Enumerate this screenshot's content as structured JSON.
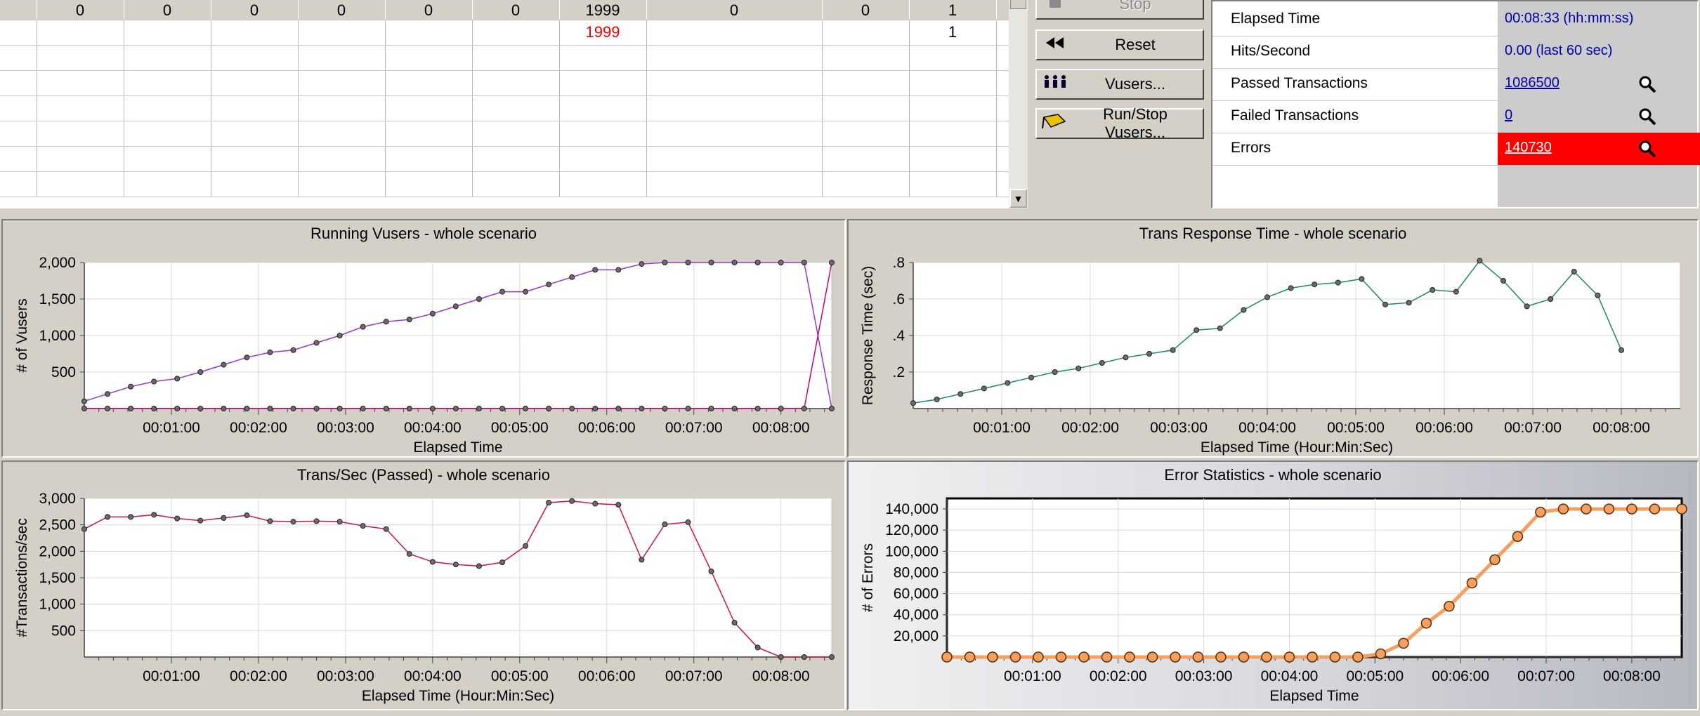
{
  "grid": {
    "rows": [
      [
        "",
        "0",
        "0",
        "0",
        "0",
        "0",
        "0",
        "1999",
        "0",
        "0",
        "1",
        ""
      ],
      [
        "",
        "",
        "",
        "",
        "",
        "",
        "",
        "1999",
        "",
        "",
        "1",
        ""
      ],
      [
        "",
        "",
        "",
        "",
        "",
        "",
        "",
        "",
        "",
        "",
        "",
        ""
      ],
      [
        "",
        "",
        "",
        "",
        "",
        "",
        "",
        "",
        "",
        "",
        "",
        ""
      ],
      [
        "",
        "",
        "",
        "",
        "",
        "",
        "",
        "",
        "",
        "",
        "",
        ""
      ],
      [
        "",
        "",
        "",
        "",
        "",
        "",
        "",
        "",
        "",
        "",
        "",
        ""
      ],
      [
        "",
        "",
        "",
        "",
        "",
        "",
        "",
        "",
        "",
        "",
        "",
        ""
      ],
      [
        "",
        "",
        "",
        "",
        "",
        "",
        "",
        "",
        "",
        "",
        "",
        ""
      ]
    ]
  },
  "controls": {
    "stop": "Stop",
    "reset": "Reset",
    "vusers": "Vusers...",
    "run_stop_vusers": "Run/Stop Vusers..."
  },
  "stats": [
    {
      "label": "Elapsed Time",
      "value": "00:08:33 (hh:mm:ss)",
      "link": false
    },
    {
      "label": "Hits/Second",
      "value": "0.00 (last 60 sec)",
      "link": false
    },
    {
      "label": "Passed Transactions",
      "value": "1086500",
      "link": true
    },
    {
      "label": "Failed Transactions",
      "value": "0",
      "link": true
    },
    {
      "label": "Errors",
      "value": "140730",
      "link": true,
      "error": true
    }
  ],
  "colors": {
    "vusers_running": "#9933cc",
    "vusers_done": "#cc0066",
    "response_time": "#1f8a5a",
    "trans_per_sec": "#cc1144",
    "errors": "#f4a060",
    "error_highlight": "#ff0000"
  },
  "chart_data": [
    {
      "type": "line",
      "title": "Running Vusers - whole scenario",
      "xlabel": "Elapsed Time",
      "ylabel": "# of Vusers",
      "xlim": [
        0,
        515
      ],
      "ylim": [
        0,
        2000
      ],
      "yticks": [
        500,
        1000,
        1500,
        2000
      ],
      "ytick_labels": [
        "500",
        "1,000",
        "1,500",
        "2,000"
      ],
      "xticks": [
        60,
        120,
        180,
        240,
        300,
        360,
        420,
        480
      ],
      "xtick_labels": [
        "00:01:00",
        "00:02:00",
        "00:03:00",
        "00:04:00",
        "00:05:00",
        "00:06:00",
        "00:07:00",
        "00:08:00"
      ],
      "x": [
        0,
        16,
        32,
        48,
        64,
        80,
        96,
        112,
        128,
        144,
        160,
        176,
        192,
        208,
        224,
        240,
        256,
        272,
        288,
        304,
        320,
        336,
        352,
        368,
        384,
        400,
        416,
        432,
        448,
        464,
        480,
        496,
        515
      ],
      "series": [
        {
          "values": [
            100,
            200,
            300,
            370,
            410,
            500,
            600,
            700,
            770,
            800,
            900,
            1000,
            1120,
            1190,
            1220,
            1300,
            1400,
            1500,
            1600,
            1600,
            1700,
            1800,
            1900,
            1900,
            1980,
            2000,
            2000,
            2000,
            2000,
            2000,
            2000,
            2000,
            0
          ]
        },
        {
          "values": [
            0,
            0,
            0,
            0,
            0,
            0,
            0,
            0,
            0,
            0,
            0,
            0,
            0,
            0,
            0,
            0,
            0,
            0,
            0,
            0,
            0,
            0,
            0,
            0,
            0,
            0,
            0,
            0,
            0,
            0,
            0,
            0,
            1999
          ]
        }
      ]
    },
    {
      "type": "line",
      "title": "Trans Response Time - whole scenario",
      "xlabel": "Elapsed Time (Hour:Min:Sec)",
      "ylabel": "Response Time (sec)",
      "xlim": [
        0,
        520
      ],
      "ylim": [
        0,
        0.8
      ],
      "yticks": [
        0.2,
        0.4,
        0.6,
        0.8
      ],
      "ytick_labels": [
        ".2",
        ".4",
        ".6",
        ".8"
      ],
      "xticks": [
        60,
        120,
        180,
        240,
        300,
        360,
        420,
        480
      ],
      "xtick_labels": [
        "00:01:00",
        "00:02:00",
        "00:03:00",
        "00:04:00",
        "00:05:00",
        "00:06:00",
        "00:07:00",
        "00:08:00"
      ],
      "x": [
        0,
        16,
        32,
        48,
        64,
        80,
        96,
        112,
        128,
        144,
        160,
        176,
        192,
        208,
        224,
        240,
        256,
        272,
        288,
        304,
        320,
        336,
        352,
        368,
        384,
        400,
        416,
        432,
        448,
        464,
        480
      ],
      "series": [
        {
          "values": [
            0.03,
            0.05,
            0.08,
            0.11,
            0.14,
            0.17,
            0.2,
            0.22,
            0.25,
            0.28,
            0.3,
            0.32,
            0.43,
            0.44,
            0.54,
            0.61,
            0.66,
            0.68,
            0.69,
            0.71,
            0.57,
            0.58,
            0.65,
            0.64,
            0.81,
            0.7,
            0.56,
            0.6,
            0.75,
            0.62,
            0.32
          ]
        }
      ]
    },
    {
      "type": "line",
      "title": "Trans/Sec (Passed) - whole scenario",
      "xlabel": "Elapsed Time (Hour:Min:Sec)",
      "ylabel": "#Transactions/sec",
      "xlim": [
        0,
        515
      ],
      "ylim": [
        0,
        3000
      ],
      "yticks": [
        500,
        1000,
        1500,
        2000,
        2500,
        3000
      ],
      "ytick_labels": [
        "500",
        "1,000",
        "1,500",
        "2,000",
        "2,500",
        "3,000"
      ],
      "xticks": [
        60,
        120,
        180,
        240,
        300,
        360,
        420,
        480
      ],
      "xtick_labels": [
        "00:01:00",
        "00:02:00",
        "00:03:00",
        "00:04:00",
        "00:05:00",
        "00:06:00",
        "00:07:00",
        "00:08:00"
      ],
      "x": [
        0,
        16,
        32,
        48,
        64,
        80,
        96,
        112,
        128,
        144,
        160,
        176,
        192,
        208,
        224,
        240,
        256,
        272,
        288,
        304,
        320,
        336,
        352,
        368,
        384,
        400,
        416,
        432,
        448,
        464,
        480,
        496,
        515
      ],
      "series": [
        {
          "values": [
            2420,
            2650,
            2650,
            2690,
            2620,
            2580,
            2630,
            2680,
            2570,
            2560,
            2570,
            2560,
            2480,
            2420,
            1950,
            1800,
            1750,
            1720,
            1790,
            2100,
            2920,
            2950,
            2900,
            2880,
            1840,
            2510,
            2550,
            1620,
            650,
            180,
            0,
            0,
            0
          ]
        }
      ]
    },
    {
      "type": "line",
      "title": "Error Statistics - whole scenario",
      "xlabel": "Elapsed Time",
      "ylabel": "# of Errors",
      "xlim": [
        0,
        515
      ],
      "ylim": [
        0,
        150000
      ],
      "yticks": [
        20000,
        40000,
        60000,
        80000,
        100000,
        120000,
        140000
      ],
      "ytick_labels": [
        "20,000",
        "40,000",
        "60,000",
        "80,000",
        "100,000",
        "120,000",
        "140,000"
      ],
      "xticks": [
        60,
        120,
        180,
        240,
        300,
        360,
        420,
        480
      ],
      "xtick_labels": [
        "00:01:00",
        "00:02:00",
        "00:03:00",
        "00:04:00",
        "00:05:00",
        "00:06:00",
        "00:07:00",
        "00:08:00"
      ],
      "x": [
        0,
        16,
        32,
        48,
        64,
        80,
        96,
        112,
        128,
        144,
        160,
        176,
        192,
        208,
        224,
        240,
        256,
        272,
        288,
        304,
        320,
        336,
        352,
        368,
        384,
        400,
        416,
        432,
        448,
        464,
        480,
        496,
        515
      ],
      "series": [
        {
          "values": [
            0,
            0,
            0,
            0,
            0,
            0,
            0,
            0,
            0,
            0,
            0,
            0,
            0,
            0,
            0,
            0,
            0,
            0,
            0,
            3000,
            13000,
            32000,
            48000,
            70000,
            92000,
            114000,
            137000,
            140000,
            140000,
            140000,
            140000,
            140000,
            140000
          ]
        }
      ]
    }
  ]
}
